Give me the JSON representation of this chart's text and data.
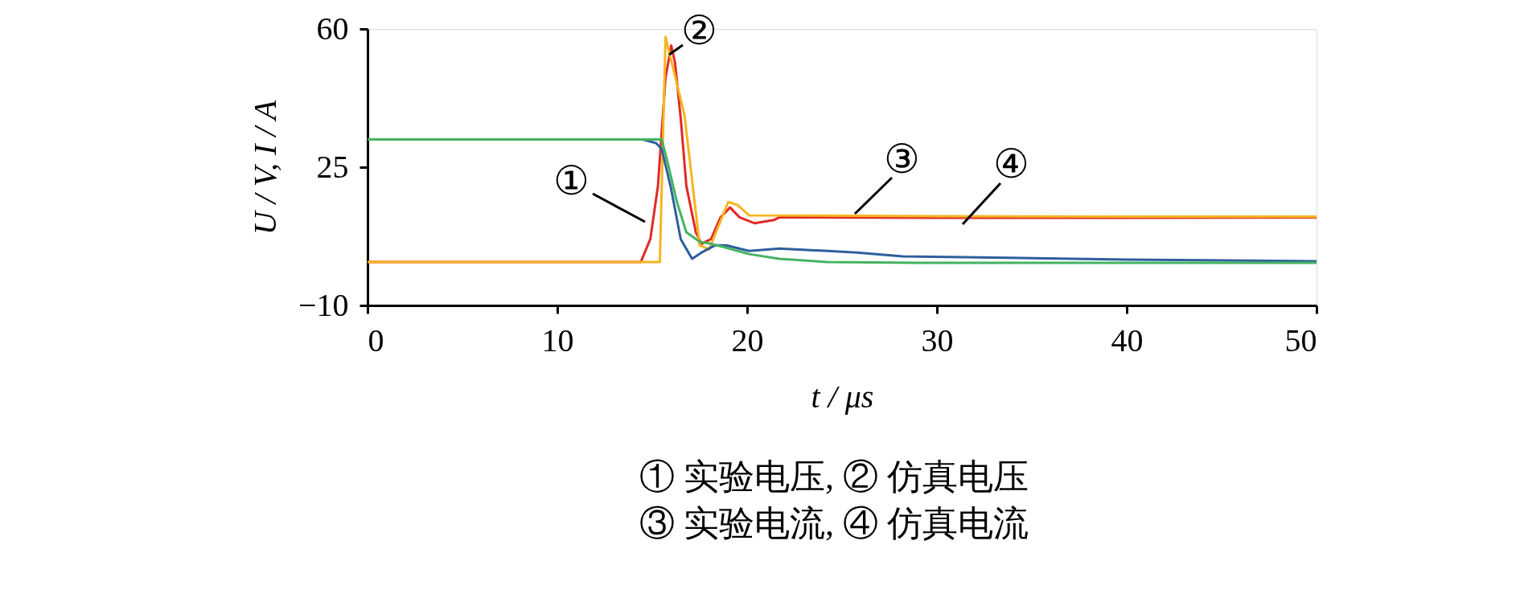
{
  "chart_data": {
    "type": "line",
    "xlabel": "t / μs",
    "ylabel": "U / V, I / A",
    "xlim": [
      0,
      50
    ],
    "xticks": [
      0,
      10,
      20,
      30,
      40,
      50
    ],
    "ylim": [
      -10,
      60
    ],
    "yticks": [
      {
        "value": -10,
        "label": "−10"
      },
      25,
      60
    ],
    "grid": false,
    "legend": false,
    "line_style": "solid",
    "marker": "none",
    "series": [
      {
        "color": "#e02a26",
        "x": [
          0,
          14.4,
          14.9,
          15.3,
          15.7,
          16.0,
          16.2,
          16.5,
          16.8,
          17.3,
          17.6,
          18.1,
          18.6,
          19.1,
          19.6,
          20.4,
          21.4,
          21.7,
          30,
          40,
          50
        ],
        "values": [
          1,
          1,
          6.8,
          20.2,
          47.6,
          55.8,
          51.5,
          37.4,
          20.2,
          8.5,
          5.6,
          6.8,
          12.3,
          14.8,
          12.3,
          10.8,
          11.6,
          12.3,
          12.2,
          12.2,
          12.3
        ]
      },
      {
        "color": "#f5b522",
        "x": [
          0,
          15.4,
          15.7,
          16.7,
          17.5,
          18.0,
          19.0,
          19.5,
          20.1,
          30,
          40,
          50
        ],
        "values": [
          1,
          1,
          58,
          38.2,
          5.2,
          4.2,
          16.2,
          15.4,
          12.8,
          12.6,
          12.5,
          12.5
        ]
      },
      {
        "color": "#2e5f9e",
        "x": [
          0,
          14.5,
          15.2,
          15.5,
          16.0,
          16.5,
          17.1,
          17.6,
          18.3,
          18.9,
          20.1,
          21.7,
          25.8,
          28.2,
          31.5,
          40,
          50
        ],
        "values": [
          32,
          32,
          31.1,
          29.6,
          19.4,
          6.8,
          1.8,
          3.4,
          5.2,
          5.2,
          3.8,
          4.4,
          3.4,
          2.4,
          2.2,
          1.6,
          1.2
        ]
      },
      {
        "color": "#43b360",
        "x": [
          0,
          15.5,
          15.8,
          16.3,
          16.8,
          17.5,
          18.1,
          18.9,
          20.1,
          21.7,
          24.2,
          29.0,
          40,
          50
        ],
        "values": [
          32,
          32,
          26.4,
          16.2,
          8.5,
          6.1,
          5.6,
          4.6,
          3.0,
          1.8,
          1.0,
          0.8,
          0.8,
          0.8
        ]
      }
    ],
    "annotations": [
      "①",
      "②",
      "③",
      "④",
      "① 实验电压, ② 仿真电压",
      "③ 实验电流, ④ 仿真电流"
    ]
  }
}
